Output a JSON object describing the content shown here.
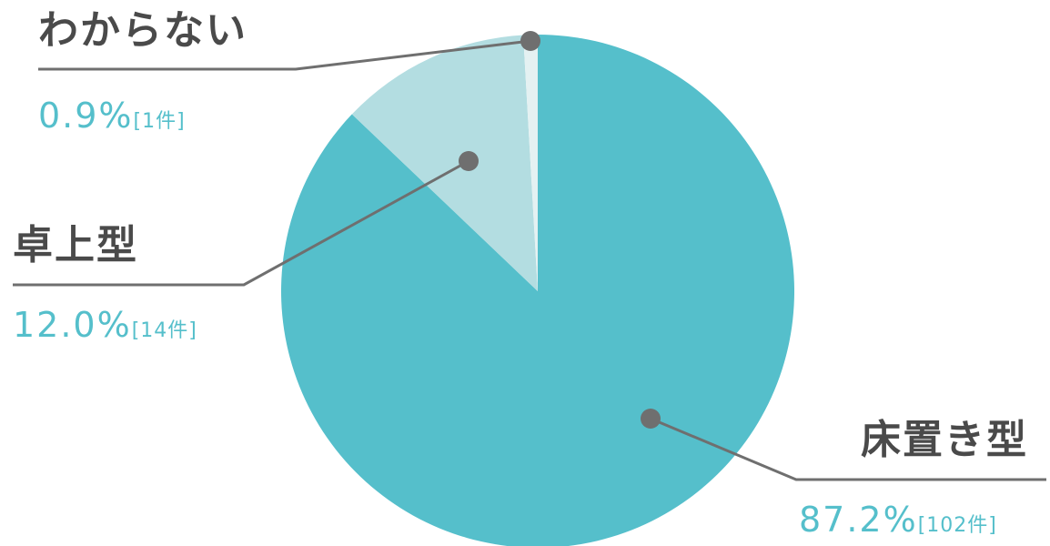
{
  "chart_data": {
    "type": "pie",
    "slices": [
      {
        "label": "床置き型",
        "percent_text": "87.2%",
        "count_text": "[102件]",
        "value": 87.2,
        "count": 102,
        "color": "#55bfcb"
      },
      {
        "label": "卓上型",
        "percent_text": "12.0%",
        "count_text": "[14件]",
        "value": 12.0,
        "count": 14,
        "color": "#b3dde1"
      },
      {
        "label": "わからない",
        "percent_text": "0.9%",
        "count_text": "[1件]",
        "value": 0.9,
        "count": 1,
        "color": "#e4f1f2"
      }
    ]
  },
  "colors": {
    "leader": "#6f6f6f",
    "label_text": "#4a4a4a",
    "value_text": "#55bfcb"
  }
}
